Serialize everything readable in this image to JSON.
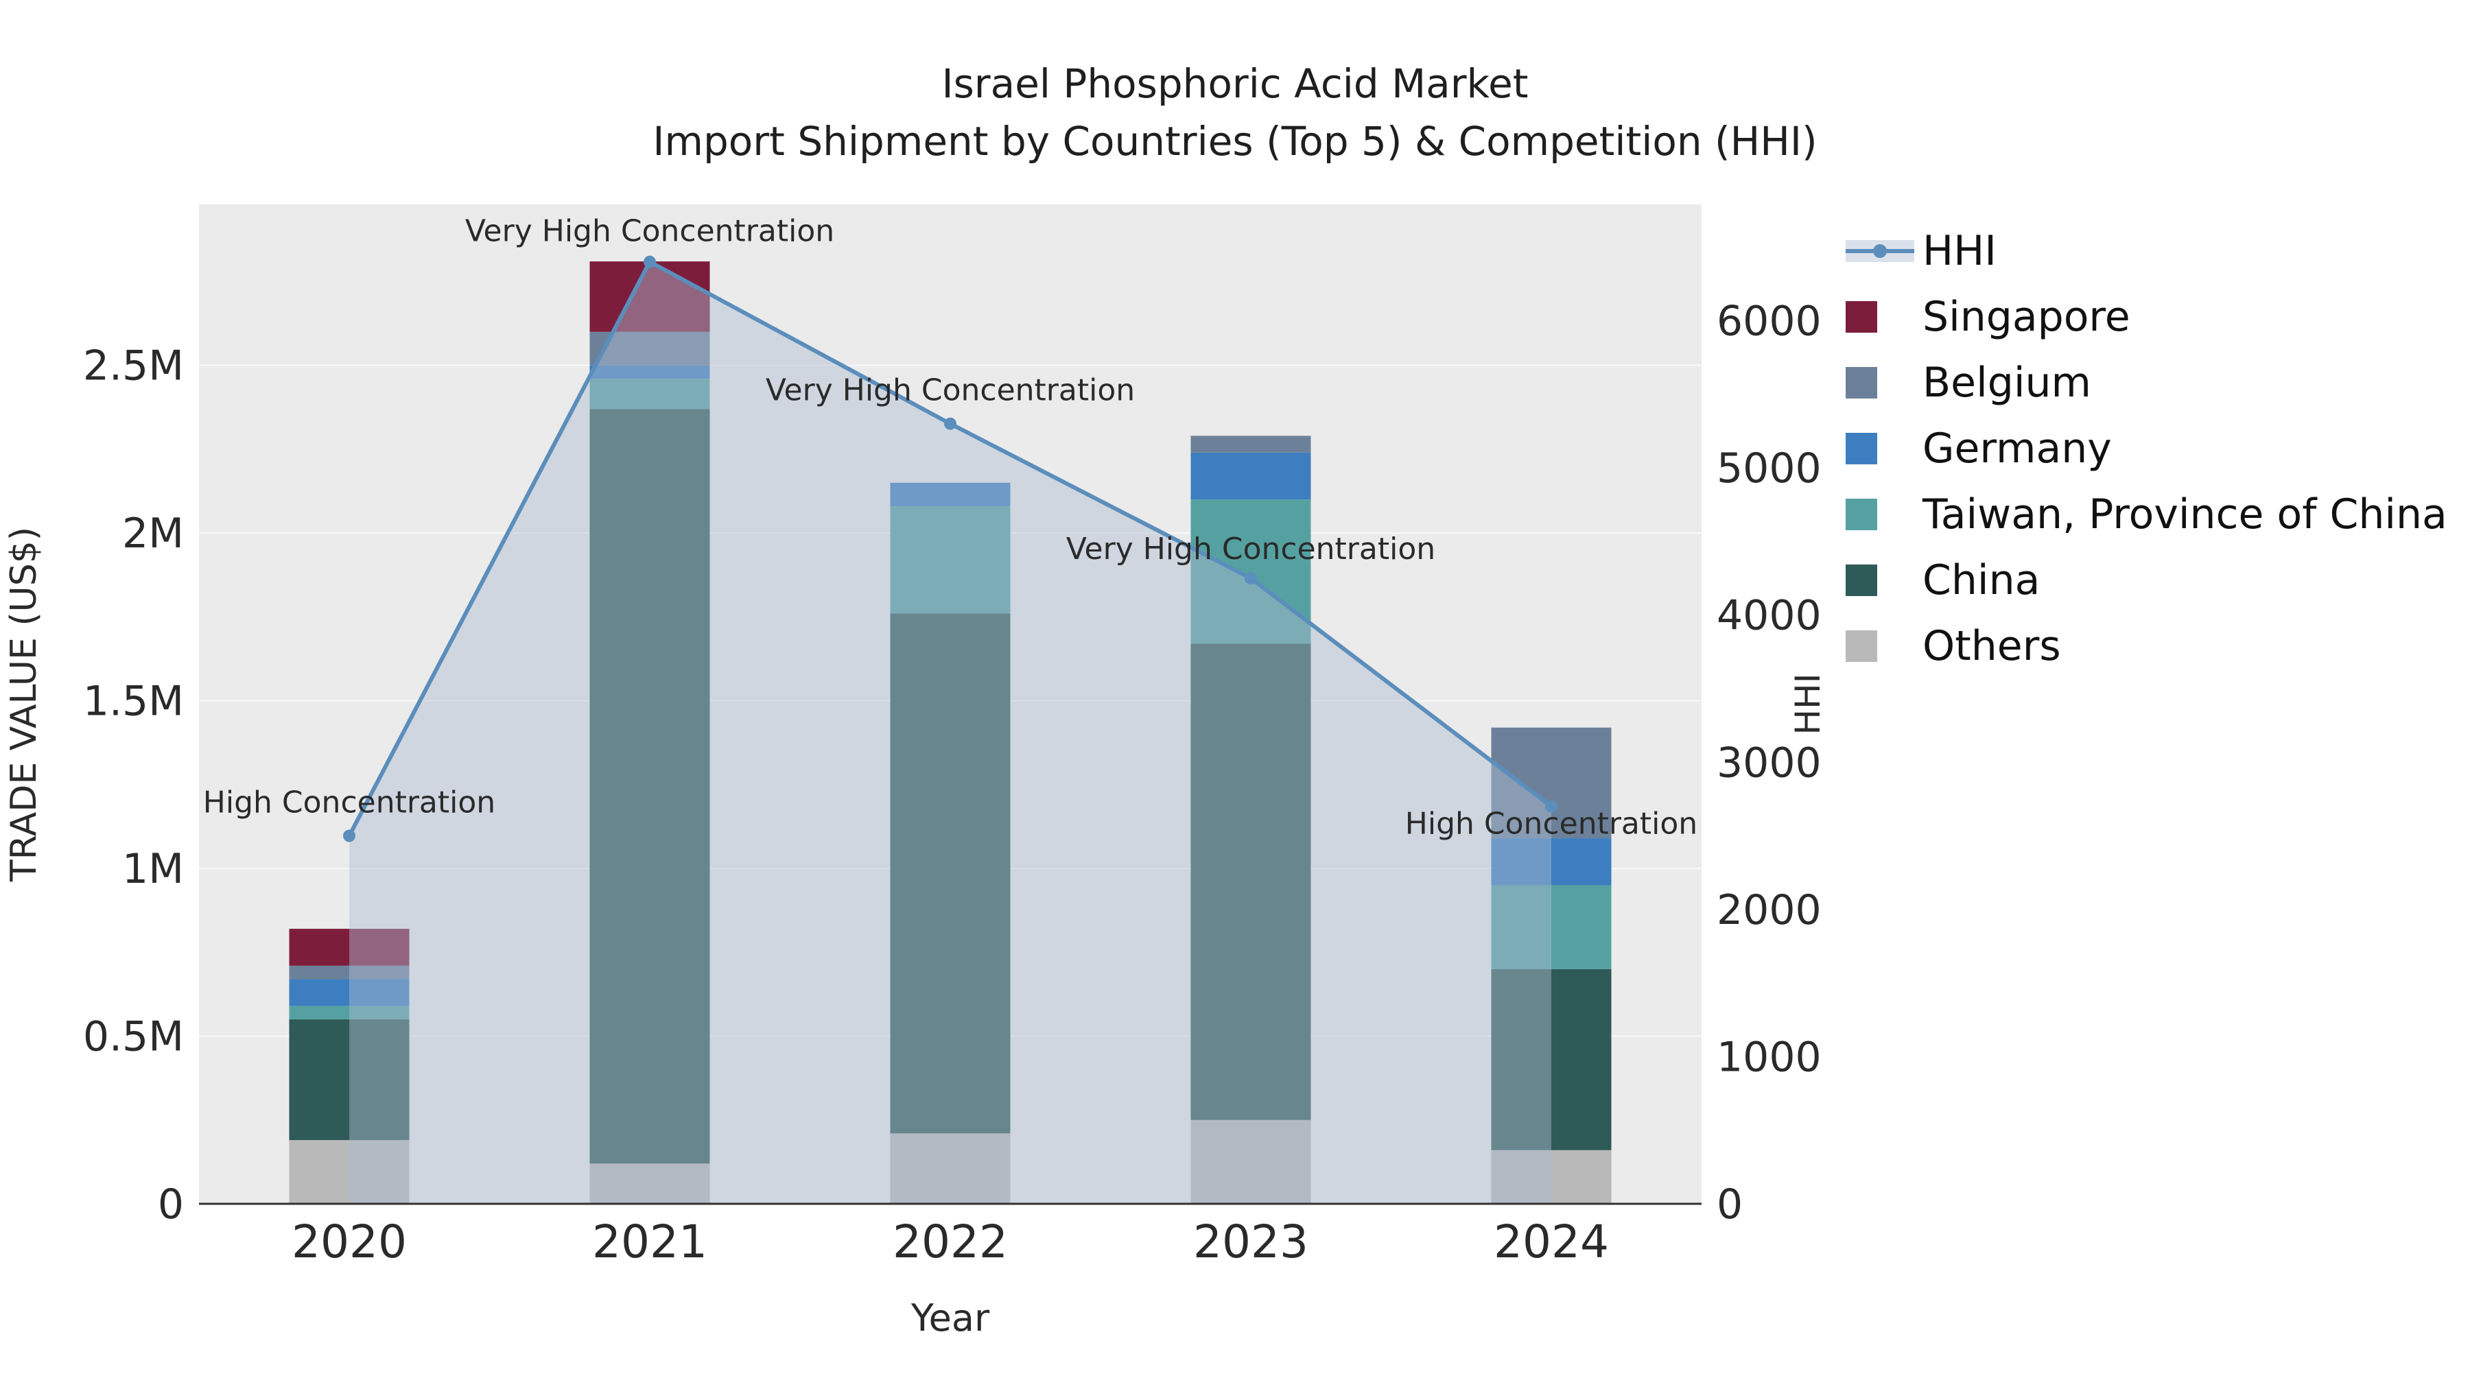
{
  "title": {
    "line1": "Israel Phosphoric Acid Market",
    "line2": "Import Shipment by Countries (Top 5) & Competition (HHI)"
  },
  "chart_data": {
    "type": "bar",
    "subtype": "stacked-bars-with-hhi-line-and-area",
    "categories": [
      "2020",
      "2021",
      "2022",
      "2023",
      "2024"
    ],
    "xlabel": "Year",
    "left_axis": {
      "label": "TRADE VALUE (US$)",
      "tick_labels": [
        "0",
        "0.5M",
        "1M",
        "1.5M",
        "2M",
        "2.5M"
      ],
      "tick_values_millions": [
        0,
        0.5,
        1,
        1.5,
        2,
        2.5
      ],
      "range_millions": [
        0,
        2.98
      ]
    },
    "right_axis": {
      "label": "HHI",
      "tick_labels": [
        "0",
        "1000",
        "2000",
        "3000",
        "4000",
        "5000",
        "6000"
      ],
      "tick_values": [
        0,
        1000,
        2000,
        3000,
        4000,
        5000,
        6000
      ],
      "range": [
        0,
        6790
      ]
    },
    "bar_series_stack_order": [
      {
        "name": "Others",
        "color": "#b9b9b9",
        "values_millions": [
          0.19,
          0.12,
          0.21,
          0.25,
          0.16
        ]
      },
      {
        "name": "China",
        "color": "#2e5a57",
        "values_millions": [
          0.36,
          2.25,
          1.55,
          1.42,
          0.54
        ]
      },
      {
        "name": "Taiwan, Province of China",
        "color": "#55a1a1",
        "values_millions": [
          0.04,
          0.09,
          0.32,
          0.43,
          0.25
        ]
      },
      {
        "name": "Germany",
        "color": "#3d7ec0",
        "values_millions": [
          0.08,
          0.04,
          0.07,
          0.14,
          0.14
        ]
      },
      {
        "name": "Belgium",
        "color": "#6c8199",
        "values_millions": [
          0.04,
          0.1,
          0.0,
          0.05,
          0.33
        ]
      },
      {
        "name": "Singapore",
        "color": "#7d1d3c",
        "values_millions": [
          0.11,
          0.21,
          0.0,
          0.0,
          0.0
        ]
      }
    ],
    "line_series": {
      "name": "HHI",
      "color": "#5b8ebc",
      "area_fill": "rgba(173,188,210,0.45)",
      "values": [
        2500,
        6400,
        5300,
        4250,
        2700
      ]
    },
    "annotations": [
      {
        "year": "2020",
        "text": "High Concentration"
      },
      {
        "year": "2021",
        "text": "Very High Concentration"
      },
      {
        "year": "2022",
        "text": "Very High Concentration"
      },
      {
        "year": "2023",
        "text": "Very High Concentration"
      },
      {
        "year": "2024",
        "text": "High Concentration"
      }
    ],
    "legend_order": [
      "HHI",
      "Singapore",
      "Belgium",
      "Germany",
      "Taiwan, Province of China",
      "China",
      "Others"
    ],
    "plot_background": "#ebebeb",
    "grid_color": "#fafafa",
    "axis_line_color": "#333333"
  }
}
